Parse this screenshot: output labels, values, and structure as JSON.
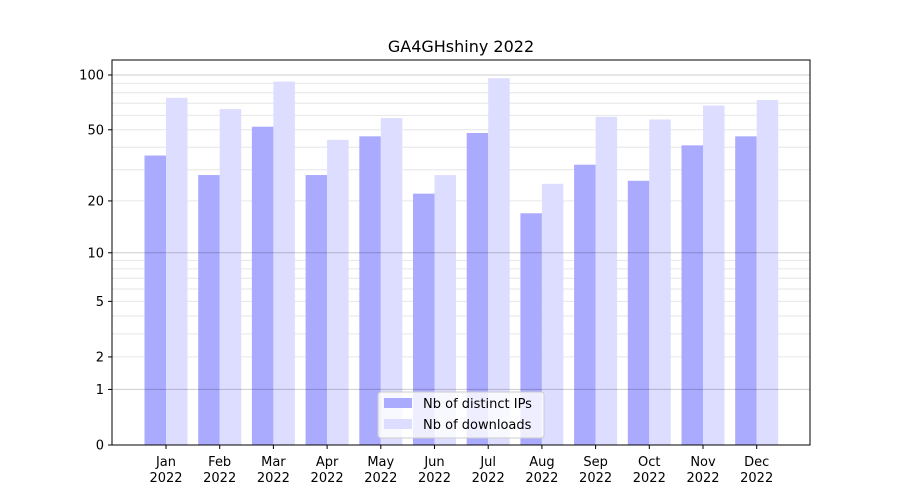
{
  "chart_data": {
    "type": "bar",
    "title": "GA4GHshiny 2022",
    "xlabel": "",
    "ylabel": "",
    "yscale": "log10(1+y)",
    "ylim": [
      0,
      120.8
    ],
    "yticks": [
      0,
      1,
      2,
      5,
      10,
      20,
      50,
      100
    ],
    "ytick_labels": [
      "0",
      "1",
      "2",
      "5",
      "10",
      "20",
      "50",
      "100"
    ],
    "categories": [
      "Jan\n2022",
      "Feb\n2022",
      "Mar\n2022",
      "Apr\n2022",
      "May\n2022",
      "Jun\n2022",
      "Jul\n2022",
      "Aug\n2022",
      "Sep\n2022",
      "Oct\n2022",
      "Nov\n2022",
      "Dec\n2022"
    ],
    "series": [
      {
        "name": "Nb of distinct IPs",
        "color": "#aaaaff",
        "values": [
          36,
          28,
          52,
          28,
          46,
          22,
          48,
          17,
          32,
          26,
          41,
          46
        ]
      },
      {
        "name": "Nb of downloads",
        "color": "#ddddff",
        "values": [
          75,
          65,
          92,
          44,
          58,
          28,
          96,
          25,
          59,
          57,
          68,
          73
        ]
      }
    ],
    "legend": "bottom-center",
    "grid": true
  }
}
